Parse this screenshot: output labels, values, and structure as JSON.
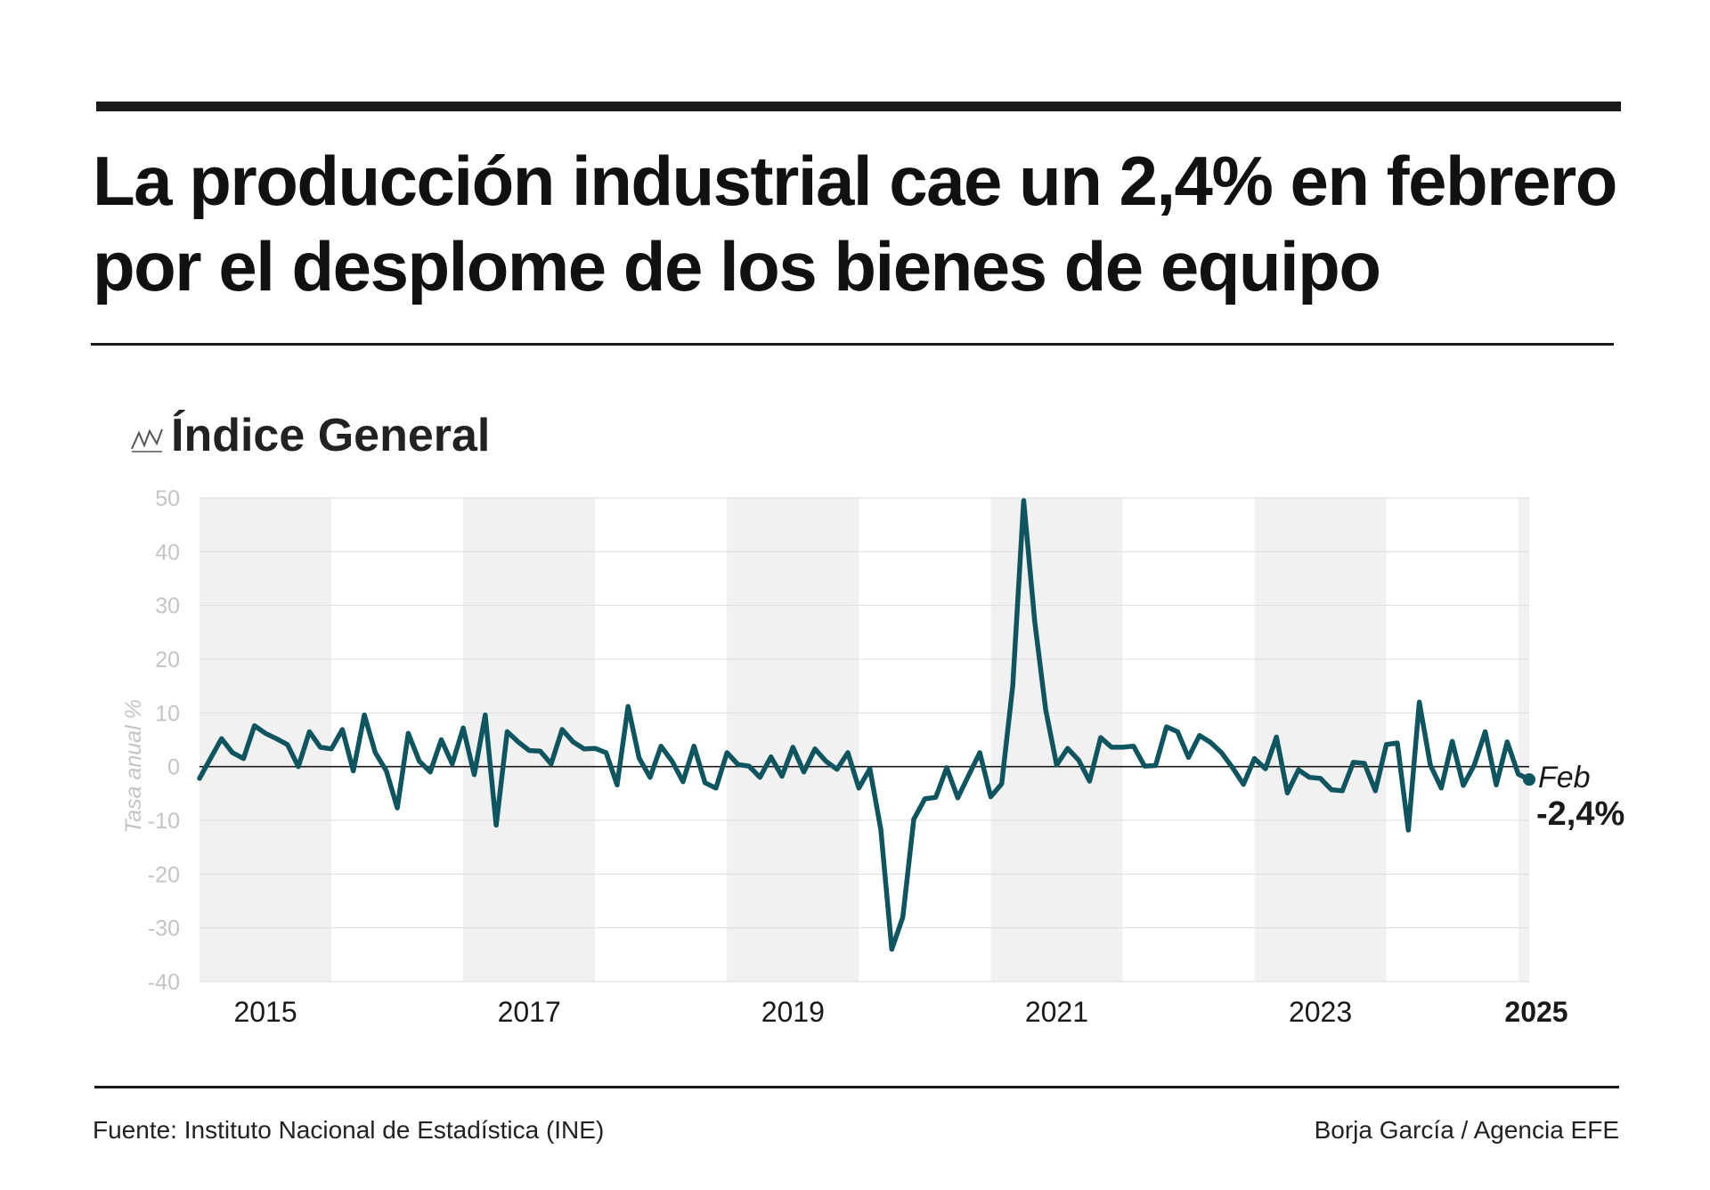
{
  "header": {
    "title_line1": "La producción industrial cae un 2,4% en febrero",
    "title_line2": "por el desplome de los bienes de equipo"
  },
  "subtitle": {
    "text": "Índice General",
    "icon": "line-chart-icon"
  },
  "footer": {
    "source": "Fuente: Instituto Nacional de Estadística (INE)",
    "credit": "Borja García / Agencia EFE"
  },
  "colors": {
    "line": "#0f5560",
    "band": "#f1f1f1",
    "grid": "#dcdcdc",
    "zero": "#1a1a1a",
    "tick": "#c4c4c4",
    "text": "#1a1a1a"
  },
  "chart_data": {
    "type": "line",
    "ylabel": "Tasa anual %",
    "ylim": [
      -40,
      50
    ],
    "yticks": [
      50,
      40,
      30,
      20,
      10,
      0,
      -10,
      -20,
      -30,
      -40
    ],
    "x_start": "2015-01",
    "x_end": "2025-02",
    "xtick_labels": [
      {
        "label": "2015",
        "year": 2015
      },
      {
        "label": "2017",
        "year": 2017
      },
      {
        "label": "2019",
        "year": 2019
      },
      {
        "label": "2021",
        "year": 2021
      },
      {
        "label": "2023",
        "year": 2023
      },
      {
        "label": "2025",
        "year": 2025
      }
    ],
    "shaded_years": [
      2015,
      2017,
      2019,
      2021,
      2023,
      2025
    ],
    "grid": true,
    "end_annotation": {
      "month": "Feb",
      "value": "-2,4%"
    },
    "series": [
      {
        "values": [
          -2.2,
          1.5,
          5.2,
          2.6,
          1.5,
          7.6,
          6.2,
          5.2,
          4.1,
          0,
          6.5,
          3.6,
          3.3,
          6.9,
          -0.8,
          9.6,
          2.6,
          -0.8,
          -7.7,
          6.2,
          1.0,
          -1.0,
          5.0,
          0.5,
          7.2,
          -1.5,
          9.6,
          -10.9,
          6.5,
          4.6,
          3.0,
          2.9,
          0.5,
          6.9,
          4.6,
          3.3,
          3.4,
          2.6,
          -3.4,
          11.2,
          1.6,
          -2.0,
          3.8,
          1.0,
          -2.8,
          3.8,
          -3.0,
          -4.0,
          2.6,
          0.4,
          0.1,
          -2.0,
          1.8,
          -1.8,
          3.6,
          -1.0,
          3.3,
          1.0,
          -0.5,
          2.6,
          -4.0,
          -0.4,
          -11.7,
          -34.0,
          -28.0,
          -9.8,
          -6.0,
          -5.7,
          -0.2,
          -5.8,
          -1.6,
          2.6,
          -5.6,
          -3.2,
          15.0,
          49.5,
          27.0,
          10.6,
          0.3,
          3.4,
          1.2,
          -2.7,
          5.4,
          3.6,
          3.6,
          3.8,
          0.1,
          0.2,
          7.4,
          6.5,
          1.7,
          5.8,
          4.5,
          2.6,
          -0.2,
          -3.3,
          1.5,
          -0.4,
          5.5,
          -4.9,
          -0.6,
          -2.0,
          -2.2,
          -4.3,
          -4.5,
          0.8,
          0.6,
          -4.5,
          4.1,
          4.4,
          -11.8,
          12.0,
          0.3,
          -4.0,
          4.7,
          -3.5,
          0.3,
          6.5,
          -3.4,
          4.6,
          -1.4,
          -2.4
        ]
      }
    ]
  }
}
